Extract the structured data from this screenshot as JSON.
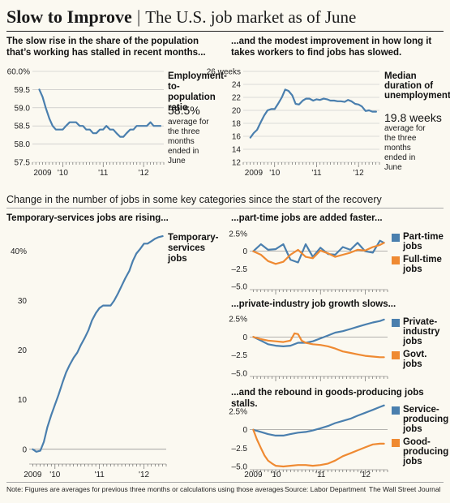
{
  "header": {
    "title": "Slow to Improve",
    "separator": "|",
    "subtitle": "The U.S. job market as of June"
  },
  "section_heading": "Change in the number of jobs in some key categories since the start of the recovery",
  "panels": {
    "emp": {
      "heading": "The slow rise in the share of the population that’s working has stalled in recent months...",
      "label": "Employment-to-population ratio",
      "value": "58.5%",
      "note": "average for the three months ended in June"
    },
    "unemp": {
      "heading": "...and the modest improvement in how long it takes workers to find jobs has slowed.",
      "label": "Median duration of unemployment",
      "value": "19.8 weeks",
      "note": "average for the three months ended in June"
    },
    "temp": {
      "heading": "Temporary-services jobs are rising...",
      "label": "Temporary-services jobs"
    },
    "pt": {
      "heading": "...part-time jobs are added faster..."
    },
    "priv": {
      "heading": "...private-industry job growth slows..."
    },
    "goods": {
      "heading": "...and the rebound in goods-producing jobs stalls."
    }
  },
  "legends": {
    "pt": [
      {
        "label": "Part-time jobs",
        "color": "#4a7fae"
      },
      {
        "label": "Full-time jobs",
        "color": "#ef8a32"
      }
    ],
    "priv": [
      {
        "label": "Private-industry jobs",
        "color": "#4a7fae"
      },
      {
        "label": "Govt. jobs",
        "color": "#ef8a32"
      }
    ],
    "goods": [
      {
        "label": "Service-producing jobs",
        "color": "#4a7fae"
      },
      {
        "label": "Good-producing jobs",
        "color": "#ef8a32"
      }
    ]
  },
  "footer": {
    "note": "Note: Figures are averages for previous three months or calculations using those averages",
    "source": "Source: Labor Department",
    "credit": "The Wall Street Journal"
  },
  "colors": {
    "blue": "#4a7fae",
    "orange": "#ef8a32"
  },
  "chart_data": [
    {
      "id": "emp",
      "type": "line",
      "xlim": [
        2009.25,
        2012.5
      ],
      "ylim": [
        57.5,
        60.0
      ],
      "yticks": [
        57.5,
        58.0,
        58.5,
        59.0,
        59.5,
        60.0
      ],
      "ytick_labels": [
        "57.5",
        "58.0",
        "58.5",
        "59.0",
        "59.5",
        "60.0%"
      ],
      "xticks": [
        2009.5,
        2010,
        2011,
        2012
      ],
      "xtick_labels": [
        "2009",
        "'10",
        "'11",
        "'12"
      ],
      "series": [
        {
          "color": "#4a7fae",
          "x": [
            2009.42,
            2009.5,
            2009.58,
            2009.67,
            2009.75,
            2009.83,
            2009.92,
            2010.0,
            2010.08,
            2010.17,
            2010.25,
            2010.33,
            2010.42,
            2010.5,
            2010.58,
            2010.67,
            2010.75,
            2010.83,
            2010.92,
            2011.0,
            2011.08,
            2011.17,
            2011.25,
            2011.33,
            2011.42,
            2011.5,
            2011.58,
            2011.67,
            2011.75,
            2011.83,
            2011.92,
            2012.0,
            2012.08,
            2012.17,
            2012.25,
            2012.33,
            2012.42
          ],
          "y": [
            59.5,
            59.3,
            59.0,
            58.7,
            58.5,
            58.4,
            58.4,
            58.4,
            58.5,
            58.6,
            58.6,
            58.6,
            58.5,
            58.5,
            58.4,
            58.4,
            58.3,
            58.3,
            58.4,
            58.4,
            58.5,
            58.4,
            58.4,
            58.3,
            58.2,
            58.2,
            58.3,
            58.4,
            58.4,
            58.5,
            58.5,
            58.5,
            58.5,
            58.6,
            58.5,
            58.5,
            58.5
          ]
        }
      ]
    },
    {
      "id": "unemp",
      "type": "line",
      "xlim": [
        2009.25,
        2012.5
      ],
      "ylim": [
        12,
        26
      ],
      "yticks": [
        12,
        14,
        16,
        18,
        20,
        22,
        24,
        26
      ],
      "ytick_labels": [
        "12",
        "14",
        "16",
        "18",
        "20",
        "22",
        "24",
        "26 weeks"
      ],
      "xticks": [
        2009.5,
        2010,
        2011,
        2012
      ],
      "xtick_labels": [
        "2009",
        "'10",
        "'11",
        "'12"
      ],
      "series": [
        {
          "color": "#4a7fae",
          "x": [
            2009.42,
            2009.5,
            2009.58,
            2009.67,
            2009.75,
            2009.83,
            2009.92,
            2010.0,
            2010.08,
            2010.17,
            2010.25,
            2010.33,
            2010.42,
            2010.5,
            2010.58,
            2010.67,
            2010.75,
            2010.83,
            2010.92,
            2011.0,
            2011.08,
            2011.17,
            2011.25,
            2011.33,
            2011.42,
            2011.5,
            2011.58,
            2011.67,
            2011.75,
            2011.83,
            2011.92,
            2012.0,
            2012.08,
            2012.17,
            2012.25,
            2012.33,
            2012.42
          ],
          "y": [
            15.8,
            16.5,
            17.0,
            18.2,
            19.2,
            20.0,
            20.2,
            20.2,
            21.0,
            22.0,
            23.2,
            23.0,
            22.3,
            21.0,
            20.9,
            21.5,
            21.8,
            21.8,
            21.5,
            21.7,
            21.6,
            21.8,
            21.7,
            21.5,
            21.5,
            21.4,
            21.4,
            21.3,
            21.6,
            21.4,
            21.0,
            20.9,
            20.6,
            19.9,
            20.0,
            19.8,
            19.8
          ]
        }
      ]
    },
    {
      "id": "temp",
      "type": "line",
      "xlim": [
        2009.42,
        2012.5
      ],
      "ylim": [
        -2,
        44
      ],
      "yticks": [
        0,
        10,
        20,
        30,
        40
      ],
      "ytick_labels": [
        "0",
        "10",
        "20",
        "30",
        "40%"
      ],
      "xticks": [
        2009.5,
        2010,
        2011,
        2012
      ],
      "xtick_labels": [
        "2009",
        "'10",
        "'11",
        "'12"
      ],
      "series": [
        {
          "name": "Temporary-services jobs",
          "color": "#4a7fae",
          "x": [
            2009.5,
            2009.58,
            2009.67,
            2009.75,
            2009.83,
            2009.92,
            2010.0,
            2010.08,
            2010.17,
            2010.25,
            2010.33,
            2010.42,
            2010.5,
            2010.58,
            2010.67,
            2010.75,
            2010.83,
            2010.92,
            2011.0,
            2011.08,
            2011.17,
            2011.25,
            2011.33,
            2011.42,
            2011.5,
            2011.58,
            2011.67,
            2011.75,
            2011.83,
            2011.92,
            2012.0,
            2012.08,
            2012.17,
            2012.25,
            2012.33,
            2012.42
          ],
          "y": [
            0,
            -0.5,
            -0.3,
            1.5,
            4.5,
            7.0,
            9.0,
            11.0,
            13.5,
            15.5,
            17.0,
            18.5,
            19.5,
            21.0,
            22.5,
            24.0,
            26.0,
            27.5,
            28.5,
            29.0,
            29.0,
            29.0,
            30.0,
            31.5,
            33.0,
            34.5,
            36.0,
            38.0,
            39.5,
            40.5,
            41.5,
            41.5,
            42.0,
            42.5,
            42.8,
            43.0
          ]
        }
      ]
    },
    {
      "id": "pt",
      "type": "line",
      "xlim": [
        2009.42,
        2012.5
      ],
      "ylim": [
        -5,
        2.5
      ],
      "yticks": [
        -5,
        -2.5,
        0,
        2.5
      ],
      "ytick_labels": [
        "–5.0",
        "–2.5",
        "0",
        "2.5%"
      ],
      "series": [
        {
          "name": "Part-time jobs",
          "color": "#4a7fae",
          "x": [
            2009.5,
            2009.67,
            2009.83,
            2010.0,
            2010.17,
            2010.33,
            2010.5,
            2010.67,
            2010.83,
            2011.0,
            2011.17,
            2011.33,
            2011.5,
            2011.67,
            2011.83,
            2012.0,
            2012.17,
            2012.33,
            2012.42
          ],
          "y": [
            0,
            1.0,
            0.2,
            0.3,
            1.0,
            -1.2,
            -1.6,
            1.0,
            -0.8,
            0.5,
            -0.4,
            -0.5,
            0.6,
            0.2,
            1.2,
            0.0,
            -0.2,
            1.5,
            1.2
          ]
        },
        {
          "name": "Full-time jobs",
          "color": "#ef8a32",
          "x": [
            2009.5,
            2009.67,
            2009.83,
            2010.0,
            2010.17,
            2010.33,
            2010.5,
            2010.67,
            2010.83,
            2011.0,
            2011.17,
            2011.33,
            2011.5,
            2011.67,
            2011.83,
            2012.0,
            2012.17,
            2012.33,
            2012.42
          ],
          "y": [
            0,
            -0.5,
            -1.4,
            -1.8,
            -1.5,
            -0.5,
            0.2,
            -0.8,
            -1.0,
            0.1,
            -0.3,
            -0.8,
            -0.5,
            -0.2,
            0.2,
            0.1,
            0.6,
            0.9,
            1.2
          ]
        }
      ]
    },
    {
      "id": "priv",
      "type": "line",
      "xlim": [
        2009.42,
        2012.5
      ],
      "ylim": [
        -5,
        2.5
      ],
      "yticks": [
        -5,
        -2.5,
        0,
        2.5
      ],
      "ytick_labels": [
        "–5.0",
        "–2.5",
        "0",
        "2.5%"
      ],
      "series": [
        {
          "name": "Private-industry jobs",
          "color": "#4a7fae",
          "x": [
            2009.5,
            2009.67,
            2009.83,
            2010.0,
            2010.17,
            2010.33,
            2010.5,
            2010.67,
            2010.83,
            2011.0,
            2011.17,
            2011.33,
            2011.5,
            2011.67,
            2011.83,
            2012.0,
            2012.17,
            2012.33,
            2012.42
          ],
          "y": [
            0,
            -0.5,
            -1.0,
            -1.2,
            -1.3,
            -1.2,
            -0.8,
            -0.8,
            -0.6,
            -0.2,
            0.2,
            0.6,
            0.8,
            1.1,
            1.4,
            1.7,
            2.0,
            2.2,
            2.4
          ]
        },
        {
          "name": "Govt. jobs",
          "color": "#ef8a32",
          "x": [
            2009.5,
            2009.67,
            2009.83,
            2010.0,
            2010.17,
            2010.33,
            2010.42,
            2010.5,
            2010.58,
            2010.67,
            2010.83,
            2011.0,
            2011.17,
            2011.33,
            2011.5,
            2011.67,
            2011.83,
            2012.0,
            2012.17,
            2012.33,
            2012.42
          ],
          "y": [
            0,
            -0.3,
            -0.5,
            -0.6,
            -0.7,
            -0.5,
            0.5,
            0.4,
            -0.5,
            -0.8,
            -1.0,
            -1.1,
            -1.3,
            -1.6,
            -2.0,
            -2.2,
            -2.4,
            -2.6,
            -2.7,
            -2.8,
            -2.8
          ]
        }
      ]
    },
    {
      "id": "goods",
      "type": "line",
      "xlim": [
        2009.42,
        2012.5
      ],
      "ylim": [
        -5,
        2.5
      ],
      "yticks": [
        -5,
        -2.5,
        0,
        2.5
      ],
      "ytick_labels": [
        "–5.0",
        "–2.5",
        "0",
        "2.5%"
      ],
      "xticks": [
        2009.5,
        2010,
        2011,
        2012
      ],
      "xtick_labels": [
        "2009",
        "'10",
        "'11",
        "'12"
      ],
      "series": [
        {
          "name": "Service-producing jobs",
          "color": "#4a7fae",
          "x": [
            2009.5,
            2009.67,
            2009.83,
            2010.0,
            2010.17,
            2010.33,
            2010.5,
            2010.67,
            2010.83,
            2011.0,
            2011.17,
            2011.33,
            2011.5,
            2011.67,
            2011.83,
            2012.0,
            2012.17,
            2012.33,
            2012.42
          ],
          "y": [
            0,
            -0.3,
            -0.6,
            -0.8,
            -0.8,
            -0.6,
            -0.4,
            -0.3,
            -0.1,
            0.2,
            0.5,
            0.9,
            1.2,
            1.5,
            1.9,
            2.3,
            2.7,
            3.1,
            3.3
          ]
        },
        {
          "name": "Good-producing jobs",
          "color": "#ef8a32",
          "x": [
            2009.5,
            2009.58,
            2009.67,
            2009.75,
            2009.83,
            2009.92,
            2010.0,
            2010.17,
            2010.33,
            2010.5,
            2010.67,
            2010.83,
            2011.0,
            2011.17,
            2011.33,
            2011.5,
            2011.67,
            2011.83,
            2012.0,
            2012.17,
            2012.33,
            2012.42
          ],
          "y": [
            0,
            -1.3,
            -2.5,
            -3.5,
            -4.2,
            -4.6,
            -4.9,
            -5.0,
            -4.9,
            -4.8,
            -4.8,
            -4.9,
            -4.8,
            -4.6,
            -4.2,
            -3.6,
            -3.2,
            -2.8,
            -2.4,
            -2.0,
            -1.9,
            -1.9
          ]
        }
      ]
    }
  ]
}
